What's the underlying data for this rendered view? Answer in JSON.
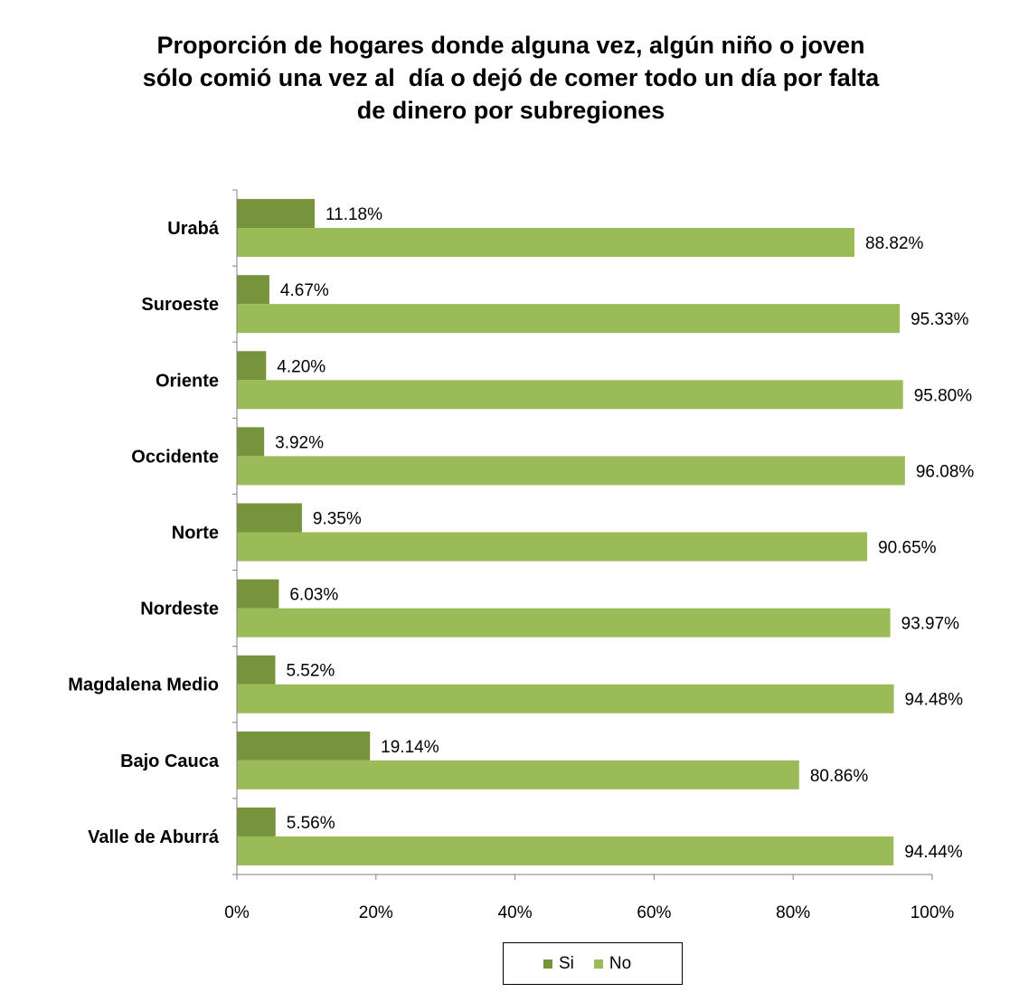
{
  "chart_data": {
    "type": "bar",
    "orientation": "horizontal",
    "title_lines": [
      "Proporción de hogares donde alguna vez, algún niño o joven",
      "sólo comió una vez al  día o dejó de comer todo un día por falta",
      "de dinero por subregiones"
    ],
    "categories": [
      "Urabá",
      "Suroeste",
      "Oriente",
      "Occidente",
      "Norte",
      "Nordeste",
      "Magdalena Medio",
      "Bajo Cauca",
      "Valle de Aburrá"
    ],
    "series": [
      {
        "name": "Si",
        "color": "#77933c",
        "values": [
          11.18,
          4.67,
          4.2,
          3.92,
          9.35,
          6.03,
          5.52,
          19.14,
          5.56
        ],
        "labels": [
          "11.18%",
          "4.67%",
          "4.20%",
          "3.92%",
          "9.35%",
          "6.03%",
          "5.52%",
          "19.14%",
          "5.56%"
        ]
      },
      {
        "name": "No",
        "color": "#9bbb59",
        "values": [
          88.82,
          95.33,
          95.8,
          96.08,
          90.65,
          93.97,
          94.48,
          80.86,
          94.44
        ],
        "labels": [
          "88.82%",
          "95.33%",
          "95.80%",
          "96.08%",
          "90.65%",
          "93.97%",
          "94.48%",
          "80.86%",
          "94.44%"
        ]
      }
    ],
    "x_ticks": [
      "0%",
      "20%",
      "40%",
      "60%",
      "80%",
      "100%"
    ],
    "xlim": [
      0,
      100
    ],
    "grid": false,
    "legend_position": "bottom"
  }
}
